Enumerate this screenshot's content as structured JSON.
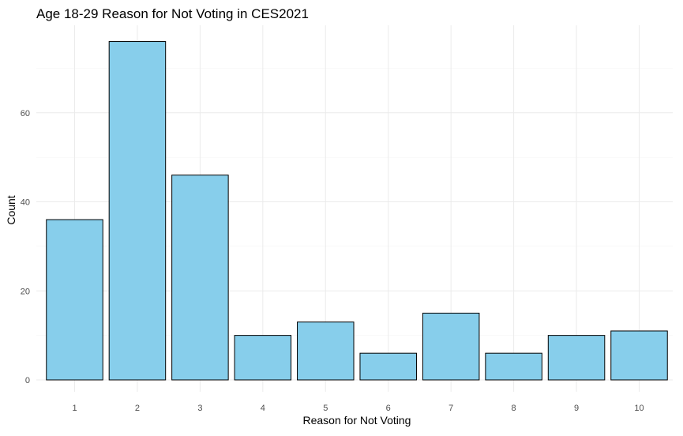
{
  "chart_data": {
    "type": "bar",
    "title": "Age 18-29 Reason for Not Voting in CES2021",
    "xlabel": "Reason for Not Voting",
    "ylabel": "Count",
    "categories": [
      "1",
      "2",
      "3",
      "4",
      "5",
      "6",
      "7",
      "8",
      "9",
      "10"
    ],
    "values": [
      36,
      76,
      46,
      10,
      13,
      6,
      15,
      6,
      10,
      11
    ],
    "ylim": [
      0,
      80
    ],
    "yticks": [
      0,
      20,
      40,
      60
    ],
    "yticklabels": [
      "0",
      "20",
      "40",
      "60"
    ],
    "grid": true,
    "legend": "none",
    "colors": {
      "bar_fill": "#87ceeb",
      "bar_stroke": "#000000"
    }
  }
}
